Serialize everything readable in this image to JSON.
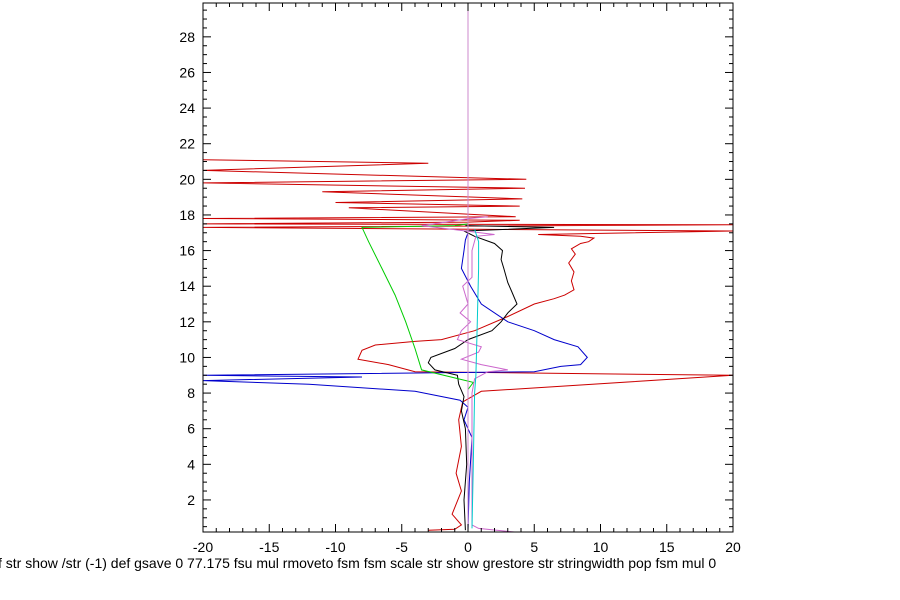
{
  "chart_data": {
    "type": "line",
    "title": "",
    "xlabel": "f str show /str (-1) def gsave 0 77.175 fsu mul rmoveto fsm fsm scale str show grestore str stringwidth pop fsm mul 0",
    "ylabel": "",
    "xlim": [
      -20,
      20
    ],
    "ylim": [
      0.2,
      29.9
    ],
    "xticks": [
      -20,
      -15,
      -10,
      -5,
      0,
      5,
      10,
      15,
      20
    ],
    "xtick_labels": [
      "-20",
      "-15",
      "-10",
      "-5",
      "0",
      "5",
      "10",
      "15",
      "20"
    ],
    "yticks": [
      2,
      4,
      6,
      8,
      10,
      12,
      14,
      16,
      18,
      20,
      22,
      24,
      26,
      28
    ],
    "ytick_labels": [
      "2",
      "4",
      "6",
      "8",
      "10",
      "12",
      "14",
      "16",
      "18",
      "20",
      "22",
      "24",
      "26",
      "28"
    ],
    "grid": false,
    "legend": "none",
    "series": [
      {
        "name": "red",
        "color": "#cc0000",
        "points": [
          [
            -3,
            0.3
          ],
          [
            -1,
            0.35
          ],
          [
            -0.5,
            0.6
          ],
          [
            -1.2,
            1.2
          ],
          [
            -0.5,
            2.5
          ],
          [
            -0.9,
            3.5
          ],
          [
            -0.5,
            5
          ],
          [
            -0.7,
            6.5
          ],
          [
            -0.4,
            7.5
          ],
          [
            1.0,
            8.1
          ],
          [
            20,
            9.0
          ],
          [
            -4.0,
            9.2
          ],
          [
            -6.0,
            9.6
          ],
          [
            -8.3,
            9.9
          ],
          [
            -8.0,
            10.4
          ],
          [
            -7.0,
            10.7
          ],
          [
            -4.0,
            10.9
          ],
          [
            -2.0,
            11.0
          ],
          [
            0.5,
            11.5
          ],
          [
            3.0,
            12.3
          ],
          [
            5.0,
            13.0
          ],
          [
            6.5,
            13.3
          ],
          [
            7.3,
            13.5
          ],
          [
            8.0,
            13.8
          ],
          [
            7.8,
            14.3
          ],
          [
            8.0,
            14.8
          ],
          [
            7.6,
            15.3
          ],
          [
            8.1,
            15.8
          ],
          [
            7.8,
            16.1
          ],
          [
            8.5,
            16.4
          ],
          [
            9.1,
            16.5
          ],
          [
            9.5,
            16.7
          ],
          [
            8.5,
            16.8
          ],
          [
            5.3,
            16.9
          ],
          [
            20,
            17.1
          ],
          [
            -20,
            17.3
          ],
          [
            20,
            17.45
          ],
          [
            -20,
            17.5
          ],
          [
            0,
            17.6
          ],
          [
            3.9,
            17.7
          ],
          [
            -20,
            17.8
          ],
          [
            3.6,
            17.9
          ],
          [
            -9.0,
            18.4
          ],
          [
            3.9,
            18.5
          ],
          [
            -10.0,
            18.7
          ],
          [
            4.1,
            18.9
          ],
          [
            -11.0,
            19.3
          ],
          [
            4.3,
            19.5
          ],
          [
            -20,
            19.8
          ],
          [
            4.4,
            20.0
          ],
          [
            -20,
            20.5
          ],
          [
            -3.0,
            20.9
          ],
          [
            -20,
            21.1
          ]
        ]
      },
      {
        "name": "blue",
        "color": "#0000cc",
        "points": [
          [
            0.0,
            0.3
          ],
          [
            0.1,
            3.0
          ],
          [
            0.3,
            5.5
          ],
          [
            -0.3,
            6.5
          ],
          [
            0.0,
            7.2
          ],
          [
            -0.6,
            7.6
          ],
          [
            -4.0,
            8.1
          ],
          [
            -12.0,
            8.5
          ],
          [
            -20,
            8.7
          ],
          [
            -8.0,
            8.9
          ],
          [
            -20,
            9.0
          ],
          [
            5.0,
            9.2
          ],
          [
            7.0,
            9.5
          ],
          [
            8.5,
            9.6
          ],
          [
            9.0,
            10.0
          ],
          [
            8.3,
            10.6
          ],
          [
            6.5,
            11.0
          ],
          [
            5.0,
            11.5
          ],
          [
            3.0,
            12.0
          ],
          [
            1.0,
            13.0
          ],
          [
            0.2,
            14.0
          ],
          [
            -0.5,
            15.0
          ],
          [
            -0.3,
            16.0
          ],
          [
            -0.2,
            16.6
          ],
          [
            0.0,
            17.0
          ]
        ]
      },
      {
        "name": "black",
        "color": "#000000",
        "points": [
          [
            -0.2,
            0.3
          ],
          [
            -0.3,
            2.0
          ],
          [
            -0.1,
            4.0
          ],
          [
            -0.2,
            6.0
          ],
          [
            -0.5,
            7.0
          ],
          [
            -0.3,
            7.8
          ],
          [
            -0.7,
            8.5
          ],
          [
            -0.8,
            9.0
          ],
          [
            -2.5,
            9.3
          ],
          [
            -3.0,
            9.7
          ],
          [
            -2.8,
            10.0
          ],
          [
            -1.0,
            10.5
          ],
          [
            0.0,
            11.0
          ],
          [
            1.8,
            11.5
          ],
          [
            2.5,
            12.0
          ],
          [
            3.0,
            12.5
          ],
          [
            3.7,
            13.0
          ],
          [
            3.3,
            13.7
          ],
          [
            3.0,
            14.2
          ],
          [
            2.7,
            15.0
          ],
          [
            2.5,
            15.5
          ],
          [
            2.6,
            16.0
          ],
          [
            2.0,
            16.4
          ],
          [
            0.5,
            16.8
          ],
          [
            -0.3,
            17.1
          ],
          [
            6.5,
            17.3
          ],
          [
            -0.2,
            17.4
          ]
        ]
      },
      {
        "name": "green",
        "color": "#00cc00",
        "points": [
          [
            0.0,
            8.2
          ],
          [
            0.4,
            8.6
          ],
          [
            -3.5,
            9.3
          ],
          [
            -4.0,
            10.5
          ],
          [
            -4.7,
            12.0
          ],
          [
            -5.5,
            13.5
          ],
          [
            -6.5,
            15.0
          ],
          [
            -7.5,
            16.5
          ],
          [
            -8.0,
            17.3
          ],
          [
            -1.0,
            17.4
          ],
          [
            0.0,
            17.5
          ]
        ]
      },
      {
        "name": "violet",
        "color": "#cc66cc",
        "points": [
          [
            3.5,
            0.2
          ],
          [
            0.8,
            0.4
          ],
          [
            0.3,
            0.6
          ],
          [
            0.3,
            8.0
          ],
          [
            0.5,
            8.8
          ],
          [
            1.5,
            9.2
          ],
          [
            3.0,
            9.3
          ],
          [
            1.0,
            9.6
          ],
          [
            -0.5,
            9.9
          ],
          [
            0.8,
            10.3
          ],
          [
            1.0,
            10.6
          ],
          [
            -0.8,
            11.0
          ],
          [
            -0.5,
            11.5
          ],
          [
            0.2,
            12.0
          ],
          [
            -0.6,
            12.5
          ],
          [
            0.0,
            13.0
          ],
          [
            -0.2,
            13.5
          ],
          [
            -0.4,
            14.0
          ],
          [
            0.3,
            14.5
          ],
          [
            0.3,
            16.0
          ],
          [
            0.6,
            16.8
          ],
          [
            2.0,
            16.9
          ],
          [
            -3.5,
            17.4
          ],
          [
            0.1,
            17.8
          ],
          [
            1.5,
            17.9
          ]
        ]
      },
      {
        "name": "cyan",
        "color": "#00cccc",
        "points": [
          [
            0.3,
            0.4
          ],
          [
            0.4,
            4.0
          ],
          [
            0.5,
            8.0
          ],
          [
            0.6,
            9.0
          ],
          [
            0.7,
            12.0
          ],
          [
            0.8,
            15.0
          ],
          [
            0.8,
            16.5
          ],
          [
            0.5,
            17.2
          ]
        ]
      },
      {
        "name": "zero-line",
        "color": "#cc88cc",
        "points": [
          [
            0,
            0.2
          ],
          [
            0,
            29.9
          ]
        ]
      }
    ]
  }
}
